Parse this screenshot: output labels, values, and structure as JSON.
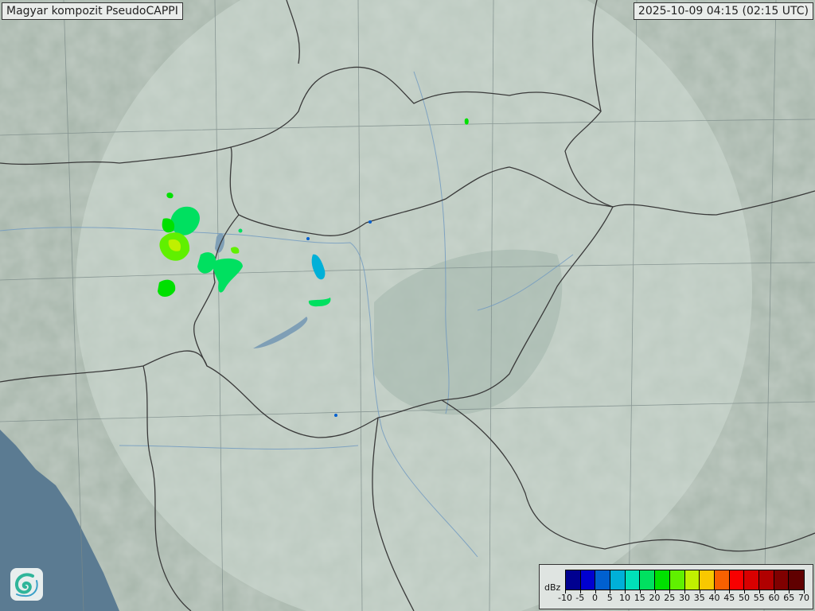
{
  "title": "Magyar kompozit  PseudoCAPPI",
  "timestamp": "2025-10-09 04:15 (02:15 UTC)",
  "legend": {
    "unit": "dBz",
    "ticks": [
      "-10",
      "-5",
      "0",
      "5",
      "10",
      "15",
      "20",
      "25",
      "30",
      "35",
      "40",
      "45",
      "50",
      "55",
      "60",
      "65",
      "70"
    ],
    "colors": [
      "#000090",
      "#0000d0",
      "#0060d0",
      "#00b0d8",
      "#00e0b8",
      "#00e060",
      "#00e000",
      "#60f000",
      "#c0f000",
      "#f8c800",
      "#f86000",
      "#f80000",
      "#d80000",
      "#b00000",
      "#800000",
      "#600000"
    ]
  },
  "logo": {
    "icon": "swirl-logo-icon"
  },
  "map": {
    "land_color": "#a7b6ab",
    "radar_coverage_color": "#c3d0c8",
    "sea_color": "#5b7b92",
    "lake_color": "#7f9fb6",
    "border_color": "#3a3a3a"
  }
}
